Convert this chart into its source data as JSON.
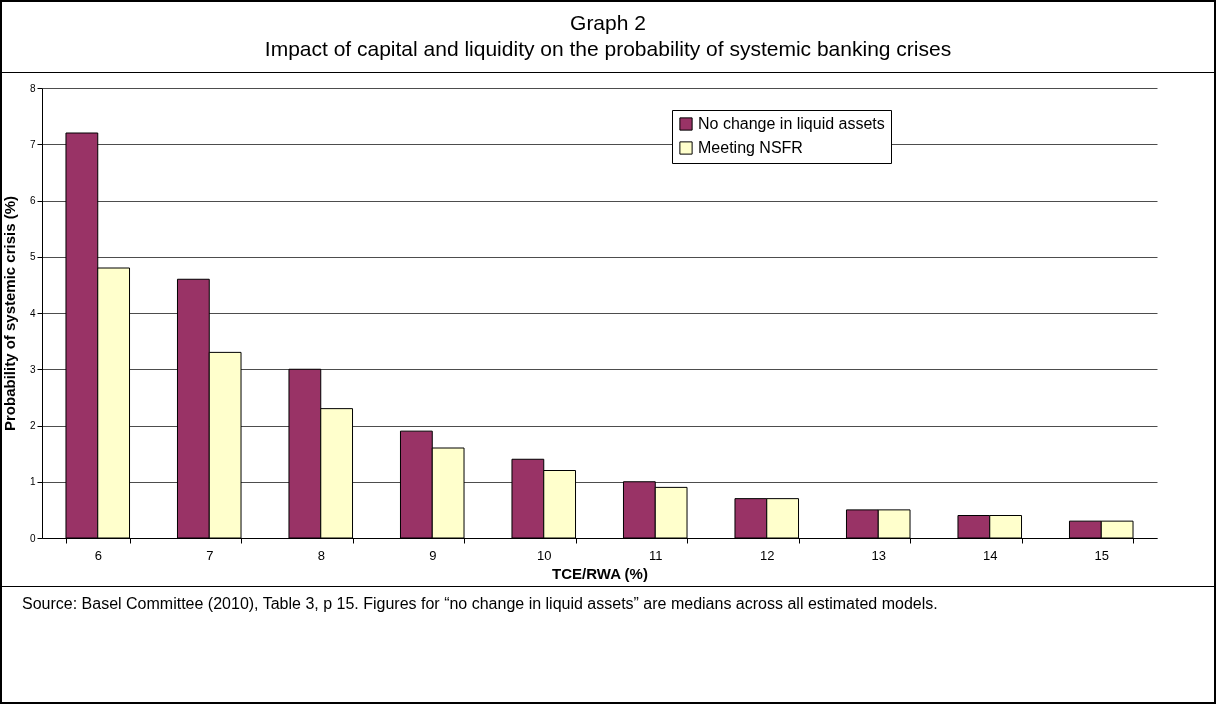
{
  "chart_data": {
    "type": "bar",
    "title": "Graph 2",
    "subtitle": "Impact of capital and liquidity on the probability of systemic banking crises",
    "xlabel": "TCE/RWA (%)",
    "ylabel": "Probability of systemic crisis (%)",
    "categories": [
      "6",
      "7",
      "8",
      "9",
      "10",
      "11",
      "12",
      "13",
      "14",
      "15"
    ],
    "series": [
      {
        "name": "No change in liquid assets",
        "color": "#993366",
        "values": [
          7.2,
          4.6,
          3.0,
          1.9,
          1.4,
          1.0,
          0.7,
          0.5,
          0.4,
          0.3
        ]
      },
      {
        "name": "Meeting NSFR",
        "color": "#ffffcc",
        "values": [
          4.8,
          3.3,
          2.3,
          1.6,
          1.2,
          0.9,
          0.7,
          0.5,
          0.4,
          0.3
        ]
      }
    ],
    "ylim": [
      0,
      8
    ],
    "yticks": [
      0,
      1,
      2,
      3,
      4,
      5,
      6,
      7,
      8
    ],
    "grid": "y",
    "legend": "top",
    "annotations": [
      "Source: Basel Committee (2010), Table 3, p 15. Figures for “no change in liquid assets” are medians across all estimated models."
    ]
  }
}
